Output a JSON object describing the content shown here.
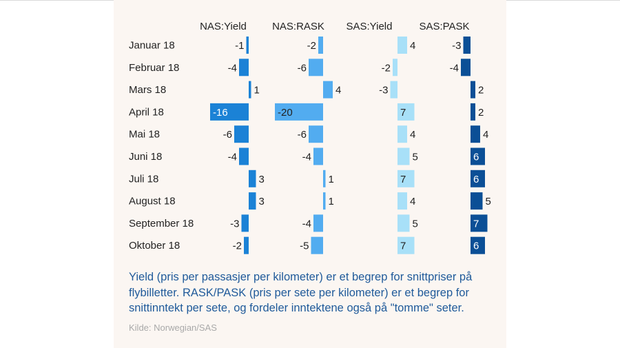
{
  "chart_data": {
    "type": "bar",
    "orientation": "horizontal",
    "categories": [
      "Januar 18",
      "Februar 18",
      "Mars 18",
      "April 18",
      "Mai 18",
      "Juni 18",
      "Juli 18",
      "August 18",
      "September 18",
      "Oktober 18"
    ],
    "series": [
      {
        "name": "NAS:Yield",
        "color": "#1b82d6",
        "values": [
          -1,
          -4,
          1,
          -16,
          -6,
          -4,
          3,
          3,
          -3,
          -2
        ]
      },
      {
        "name": "NAS:RASK",
        "color": "#52acf0",
        "values": [
          -2,
          -6,
          4,
          -20,
          -6,
          -4,
          1,
          1,
          -4,
          -5
        ]
      },
      {
        "name": "SAS:Yield",
        "color": "#a8e0f8",
        "values": [
          4,
          -2,
          -3,
          7,
          4,
          5,
          7,
          4,
          5,
          7
        ]
      },
      {
        "name": "SAS:PASK",
        "color": "#0b4f96",
        "values": [
          -3,
          -4,
          2,
          2,
          4,
          6,
          6,
          5,
          7,
          6
        ]
      }
    ]
  },
  "caption": "Yield (pris per passasjer per kilometer) er et begrep for snittpriser på flybilletter. RASK/PASK (pris per sete per kilometer) er et begrep for snittinntekt per sete, og fordeler inntektene også på \"tomme\" seter.",
  "source": "Kilde: Norwegian/SAS"
}
